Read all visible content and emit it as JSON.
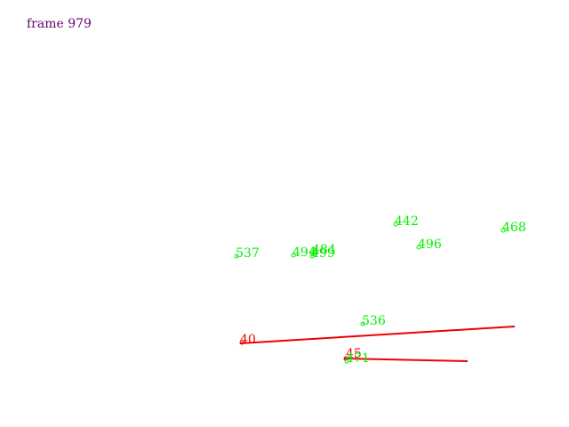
{
  "frame_label": "frame 979",
  "colors": {
    "frame_label": "#6a006a",
    "track_green": "#00ee00",
    "track_red": "#ee0000",
    "background": "#ffffff"
  },
  "green_tracks": [
    {
      "id": "442"
    },
    {
      "id": "468"
    },
    {
      "id": "496"
    },
    {
      "id": "537"
    },
    {
      "id": "494"
    },
    {
      "id": "484"
    },
    {
      "id": "499"
    },
    {
      "id": "536"
    },
    {
      "id": "471"
    }
  ],
  "red_tracks": [
    {
      "id": "40"
    },
    {
      "id": "45"
    }
  ]
}
